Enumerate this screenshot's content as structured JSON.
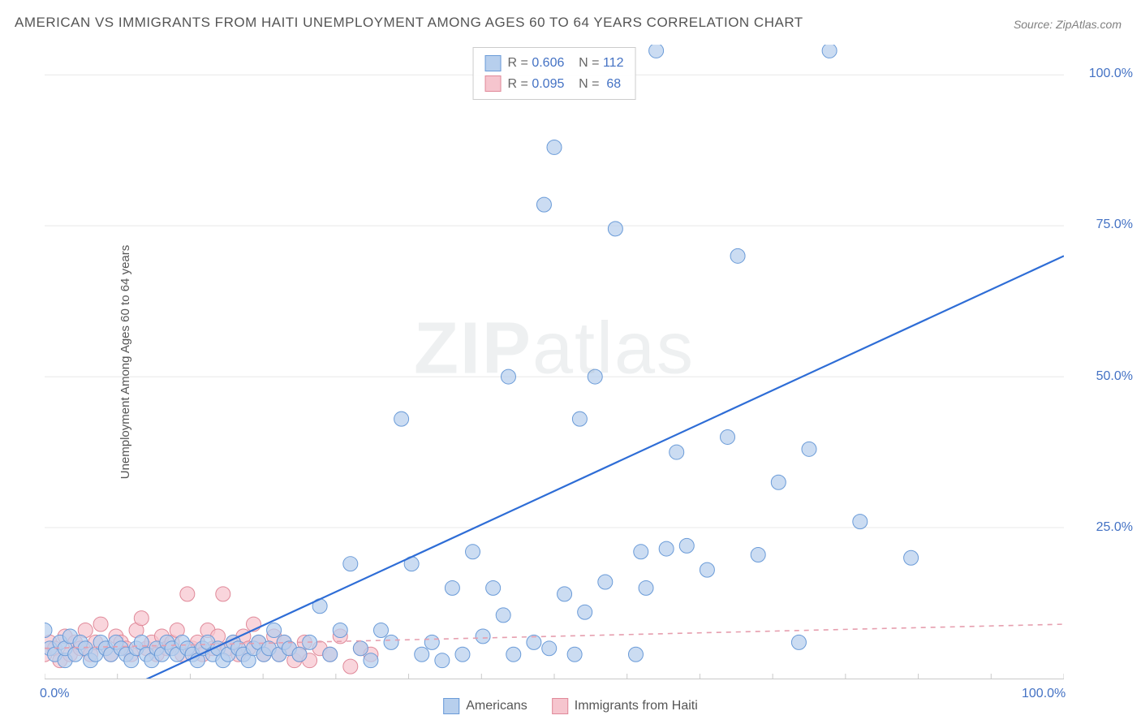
{
  "title": "AMERICAN VS IMMIGRANTS FROM HAITI UNEMPLOYMENT AMONG AGES 60 TO 64 YEARS CORRELATION CHART",
  "source": "Source: ZipAtlas.com",
  "ylabel": "Unemployment Among Ages 60 to 64 years",
  "watermark": {
    "bold": "ZIP",
    "rest": "atlas"
  },
  "chart": {
    "type": "scatter",
    "xlim": [
      0,
      100
    ],
    "ylim": [
      0,
      105
    ],
    "xtick_labels": [
      {
        "pos": 0,
        "text": "0.0%"
      },
      {
        "pos": 100,
        "text": "100.0%"
      }
    ],
    "ytick_labels": [
      {
        "pos": 25,
        "text": "25.0%"
      },
      {
        "pos": 50,
        "text": "50.0%"
      },
      {
        "pos": 75,
        "text": "75.0%"
      },
      {
        "pos": 100,
        "text": "100.0%"
      }
    ],
    "grid_color": "#e8e8e8",
    "grid_y": [
      25,
      50,
      75,
      100
    ],
    "background_color": "#ffffff",
    "tick_label_color": "#4472c4",
    "tick_label_fontsize": 16,
    "marker_radius": 9,
    "marker_stroke_width": 1,
    "series": {
      "americans": {
        "label": "Americans",
        "fill": "#b7cfed",
        "stroke": "#6a9bd8",
        "opacity": 0.72,
        "R": "0.606",
        "N": "112",
        "trend": {
          "x1": 5,
          "y1": -4,
          "x2": 100,
          "y2": 70,
          "color": "#2e6dd6",
          "width": 2.2,
          "dash": "none"
        },
        "points": [
          [
            0,
            8
          ],
          [
            0.5,
            5
          ],
          [
            1,
            4
          ],
          [
            1.5,
            6
          ],
          [
            2,
            3
          ],
          [
            2,
            5
          ],
          [
            2.5,
            7
          ],
          [
            3,
            4
          ],
          [
            3.5,
            6
          ],
          [
            4,
            5
          ],
          [
            4.5,
            3
          ],
          [
            5,
            4
          ],
          [
            5.5,
            6
          ],
          [
            6,
            5
          ],
          [
            6.5,
            4
          ],
          [
            7,
            6
          ],
          [
            7.5,
            5
          ],
          [
            8,
            4
          ],
          [
            8.5,
            3
          ],
          [
            9,
            5
          ],
          [
            9.5,
            6
          ],
          [
            10,
            4
          ],
          [
            10.5,
            3
          ],
          [
            11,
            5
          ],
          [
            11.5,
            4
          ],
          [
            12,
            6
          ],
          [
            12.5,
            5
          ],
          [
            13,
            4
          ],
          [
            13.5,
            6
          ],
          [
            14,
            5
          ],
          [
            14.5,
            4
          ],
          [
            15,
            3
          ],
          [
            15.5,
            5
          ],
          [
            16,
            6
          ],
          [
            16.5,
            4
          ],
          [
            17,
            5
          ],
          [
            17.5,
            3
          ],
          [
            18,
            4
          ],
          [
            18.5,
            6
          ],
          [
            19,
            5
          ],
          [
            19.5,
            4
          ],
          [
            20,
            3
          ],
          [
            20.5,
            5
          ],
          [
            21,
            6
          ],
          [
            21.5,
            4
          ],
          [
            22,
            5
          ],
          [
            22.5,
            8
          ],
          [
            23,
            4
          ],
          [
            23.5,
            6
          ],
          [
            24,
            5
          ],
          [
            25,
            4
          ],
          [
            26,
            6
          ],
          [
            27,
            12
          ],
          [
            28,
            4
          ],
          [
            29,
            8
          ],
          [
            30,
            19
          ],
          [
            31,
            5
          ],
          [
            32,
            3
          ],
          [
            33,
            8
          ],
          [
            34,
            6
          ],
          [
            35,
            43
          ],
          [
            36,
            19
          ],
          [
            37,
            4
          ],
          [
            38,
            6
          ],
          [
            39,
            3
          ],
          [
            40,
            15
          ],
          [
            41,
            4
          ],
          [
            42,
            21
          ],
          [
            43,
            7
          ],
          [
            44,
            15
          ],
          [
            45,
            10.5
          ],
          [
            45.5,
            50
          ],
          [
            46,
            4
          ],
          [
            48,
            6
          ],
          [
            49,
            78.5
          ],
          [
            49.5,
            5
          ],
          [
            50,
            88
          ],
          [
            51,
            14
          ],
          [
            52,
            4
          ],
          [
            52.5,
            43
          ],
          [
            53,
            11
          ],
          [
            54,
            50
          ],
          [
            55,
            16
          ],
          [
            56,
            74.5
          ],
          [
            58,
            4
          ],
          [
            58.5,
            21
          ],
          [
            59,
            15
          ],
          [
            60,
            104
          ],
          [
            61,
            21.5
          ],
          [
            62,
            37.5
          ],
          [
            63,
            22
          ],
          [
            65,
            18
          ],
          [
            67,
            40
          ],
          [
            68,
            70
          ],
          [
            70,
            20.5
          ],
          [
            72,
            32.5
          ],
          [
            74,
            6
          ],
          [
            75,
            38
          ],
          [
            77,
            104
          ],
          [
            80,
            26
          ],
          [
            85,
            20
          ]
        ]
      },
      "immigrants": {
        "label": "Immigrants from Haiti",
        "fill": "#f6c5ce",
        "stroke": "#e08999",
        "opacity": 0.72,
        "R": "0.095",
        "N": "68",
        "trend": {
          "x1": 0,
          "y1": 5,
          "x2": 100,
          "y2": 9,
          "color": "#e69eae",
          "width": 1.6,
          "dash": "6,6"
        },
        "points": [
          [
            0,
            4
          ],
          [
            0.5,
            6
          ],
          [
            1,
            5
          ],
          [
            1.5,
            3
          ],
          [
            2,
            7
          ],
          [
            2.5,
            4
          ],
          [
            3,
            6
          ],
          [
            3.5,
            5
          ],
          [
            4,
            8
          ],
          [
            4.5,
            4
          ],
          [
            5,
            6
          ],
          [
            5.5,
            9
          ],
          [
            6,
            5
          ],
          [
            6.5,
            4
          ],
          [
            7,
            7
          ],
          [
            7.5,
            6
          ],
          [
            8,
            5
          ],
          [
            8.5,
            4
          ],
          [
            9,
            8
          ],
          [
            9.5,
            10
          ],
          [
            10,
            5
          ],
          [
            10.5,
            6
          ],
          [
            11,
            4
          ],
          [
            11.5,
            7
          ],
          [
            12,
            5
          ],
          [
            12.5,
            6
          ],
          [
            13,
            8
          ],
          [
            13.5,
            4
          ],
          [
            14,
            14
          ],
          [
            14.5,
            5
          ],
          [
            15,
            6
          ],
          [
            15.5,
            4
          ],
          [
            16,
            8
          ],
          [
            16.5,
            5
          ],
          [
            17,
            7
          ],
          [
            17.5,
            14
          ],
          [
            18,
            5
          ],
          [
            18.5,
            6
          ],
          [
            19,
            4
          ],
          [
            19.5,
            7
          ],
          [
            20,
            5
          ],
          [
            20.5,
            9
          ],
          [
            21,
            6
          ],
          [
            21.5,
            4
          ],
          [
            22,
            5
          ],
          [
            22.5,
            7
          ],
          [
            23,
            4
          ],
          [
            23.5,
            6
          ],
          [
            24,
            5
          ],
          [
            24.5,
            3
          ],
          [
            25,
            4
          ],
          [
            25.5,
            6
          ],
          [
            26,
            3
          ],
          [
            27,
            5
          ],
          [
            28,
            4
          ],
          [
            29,
            7
          ],
          [
            30,
            2
          ],
          [
            31,
            5
          ],
          [
            32,
            4
          ]
        ]
      }
    }
  },
  "stats_legend": {
    "r_label": "R =",
    "n_label": "N ="
  },
  "bottom_legend": {
    "items": [
      {
        "key": "americans"
      },
      {
        "key": "immigrants"
      }
    ]
  }
}
